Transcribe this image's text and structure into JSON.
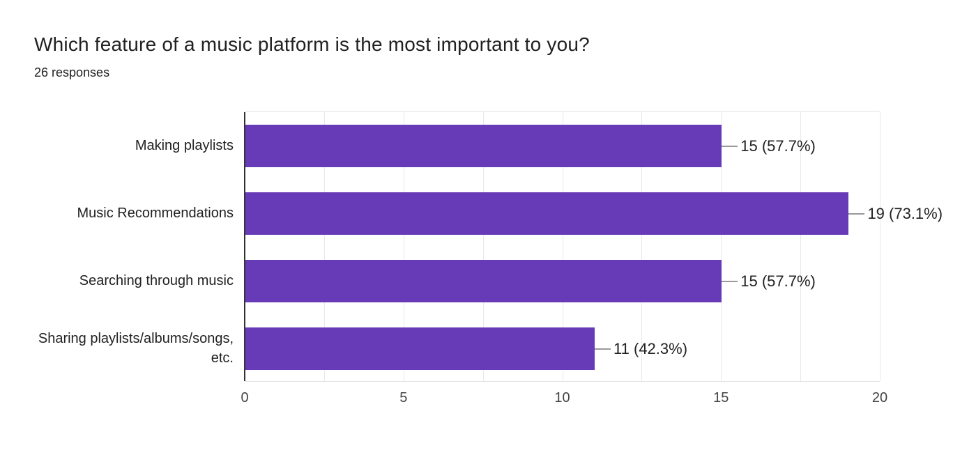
{
  "header": {
    "title": "Which feature of a music platform is the most important to you?",
    "subtitle": "26 responses"
  },
  "chart_data": {
    "type": "bar",
    "orientation": "horizontal",
    "title": "Which feature of a music platform is the most important to you?",
    "subtitle": "26 responses",
    "total_responses": 26,
    "categories": [
      "Making playlists",
      "Music Recommendations",
      "Searching through music",
      "Sharing playlists/albums/songs, etc."
    ],
    "values": [
      15,
      19,
      15,
      11
    ],
    "percentages": [
      57.7,
      73.1,
      57.7,
      42.3
    ],
    "value_labels": [
      "15 (57.7%)",
      "19 (73.1%)",
      "15 (57.7%)",
      "11 (42.3%)"
    ],
    "xlim": [
      0,
      20
    ],
    "x_ticks": [
      0,
      5,
      10,
      15,
      20
    ],
    "grid_interval": 2.5,
    "grid": true,
    "legend": "none",
    "bar_color": "#673ab7",
    "connector_color": "#999999",
    "axis_line_color": "#333333",
    "gridline_color": "#e8e8e8"
  }
}
